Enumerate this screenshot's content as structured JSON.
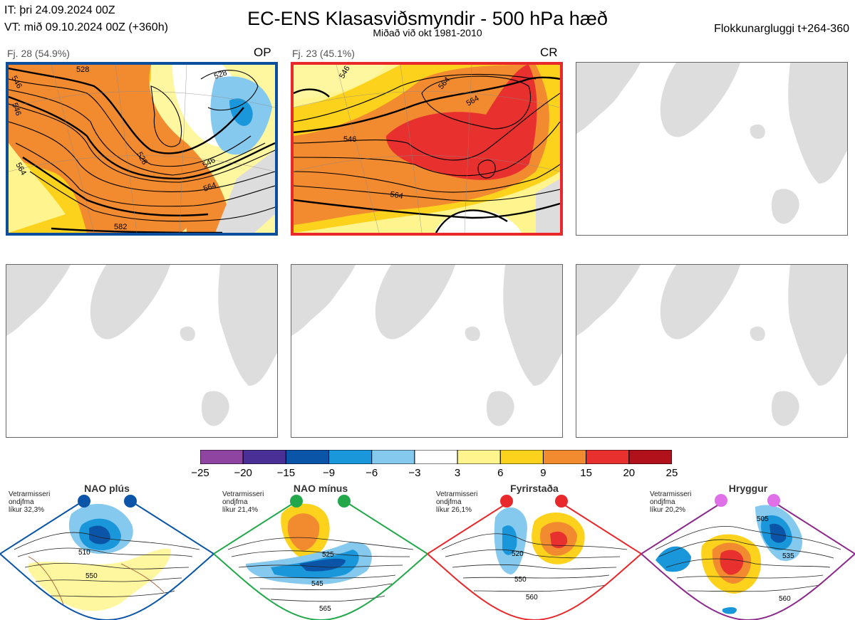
{
  "header": {
    "it": "IT: þri 24.09.2024 00Z",
    "vt": "VT: mið 09.10.2024 00Z  (+360h)",
    "title": "EC-ENS Klasasviðsmyndir - 500 hPa hæð",
    "subtitle": "Miðað við okt 1981-2010",
    "window": "Flokkunargluggi t+264-360"
  },
  "panels": [
    {
      "label": "Fj. 28 (54.9%)",
      "tag": "OP",
      "contours": [
        "546",
        "528",
        "528",
        "546",
        "528",
        "564",
        "546",
        "564",
        "582"
      ]
    },
    {
      "label": "Fj. 23 (45.1%)",
      "tag": "CR",
      "contours": [
        "546",
        "564",
        "546",
        "564",
        "564"
      ]
    },
    {
      "label": "",
      "tag": ""
    },
    {
      "label": "",
      "tag": ""
    },
    {
      "label": "",
      "tag": ""
    },
    {
      "label": "",
      "tag": ""
    }
  ],
  "colorbar": {
    "ticks": [
      "−25",
      "−20",
      "−15",
      "−9",
      "−6",
      "−3",
      "3",
      "6",
      "9",
      "15",
      "20",
      "25"
    ],
    "colors": [
      "#8e44a0",
      "#4a2f96",
      "#0b55a8",
      "#1a97db",
      "#86c9ee",
      "#ffffff",
      "#fff48e",
      "#fdd21c",
      "#f28a30",
      "#e8302e",
      "#b0111a"
    ]
  },
  "regimes": [
    {
      "name": "NAO plús",
      "info": [
        "Vetrarmisseri",
        "ondjfma",
        "líkur 32,3%"
      ],
      "color": "#0b55a8",
      "labels": [
        "510",
        "550"
      ]
    },
    {
      "name": "NAO mínus",
      "info": [
        "Vetrarmisseri",
        "ondjfma",
        "líkur 21,4%"
      ],
      "color": "#22a84a",
      "labels": [
        "525",
        "545",
        "565"
      ]
    },
    {
      "name": "Fyrirstaða",
      "info": [
        "Vetrarmisseri",
        "ondjfma",
        "líkur 26,1%"
      ],
      "color": "#e8282a",
      "labels": [
        "520",
        "550",
        "560"
      ]
    },
    {
      "name": "Hryggur",
      "info": [
        "Vetrarmisseri",
        "ondjfma",
        "líkur 20,2%"
      ],
      "color": "#8b2a8b",
      "labels": [
        "505",
        "535",
        "560"
      ]
    }
  ]
}
